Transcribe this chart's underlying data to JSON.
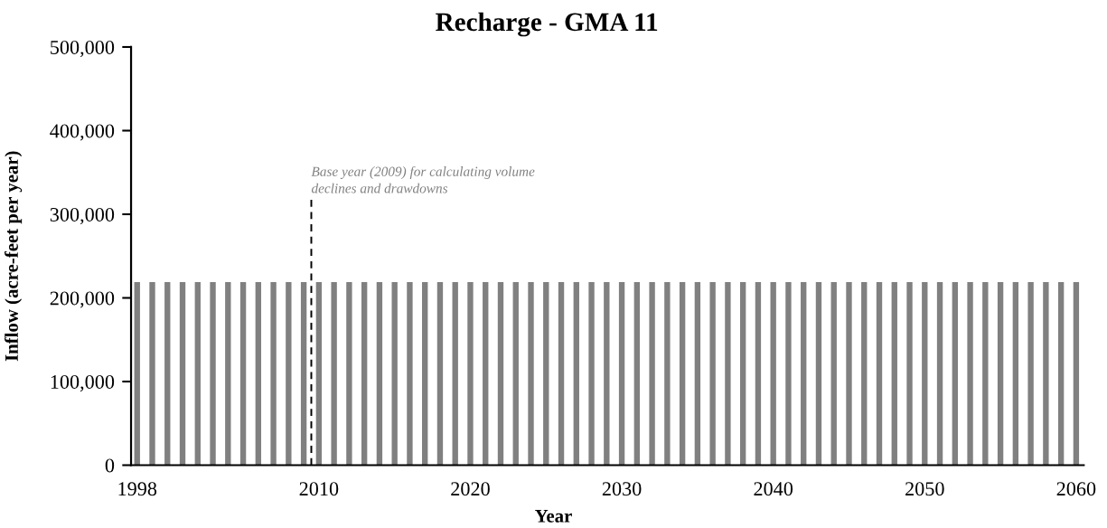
{
  "chart_data": {
    "type": "bar",
    "title": "Recharge - GMA 11",
    "xlabel": "Year",
    "ylabel": "Inflow (acre-feet per year)",
    "x": [
      1998,
      1999,
      2000,
      2001,
      2002,
      2003,
      2004,
      2005,
      2006,
      2007,
      2008,
      2009,
      2010,
      2011,
      2012,
      2013,
      2014,
      2015,
      2016,
      2017,
      2018,
      2019,
      2020,
      2021,
      2022,
      2023,
      2024,
      2025,
      2026,
      2027,
      2028,
      2029,
      2030,
      2031,
      2032,
      2033,
      2034,
      2035,
      2036,
      2037,
      2038,
      2039,
      2040,
      2041,
      2042,
      2043,
      2044,
      2045,
      2046,
      2047,
      2048,
      2049,
      2050,
      2051,
      2052,
      2053,
      2054,
      2055,
      2056,
      2057,
      2058,
      2059,
      2060
    ],
    "series": [
      {
        "color": "#808080",
        "values": [
          219000,
          219000,
          219000,
          219000,
          219000,
          219000,
          219000,
          219000,
          219000,
          219000,
          219000,
          219000,
          219000,
          219000,
          219000,
          219000,
          219000,
          219000,
          219000,
          219000,
          219000,
          219000,
          219000,
          219000,
          219000,
          219000,
          219000,
          219000,
          219000,
          219000,
          219000,
          219000,
          219000,
          219000,
          219000,
          219000,
          219000,
          219000,
          219000,
          219000,
          219000,
          219000,
          219000,
          219000,
          219000,
          219000,
          219000,
          219000,
          219000,
          219000,
          219000,
          219000,
          219000,
          219000,
          219000,
          219000,
          219000,
          219000,
          219000,
          219000,
          219000,
          219000,
          219000
        ]
      },
      {
        "type": "line",
        "x": [
          2009.5,
          2009.5
        ],
        "values": [
          0,
          318000
        ],
        "color": "#000000",
        "line_style": "dashed"
      }
    ],
    "annotations": [
      {
        "text": "Base year (2009) for calculating volume\ndeclines and drawdowns",
        "x": 2009.5,
        "y": 322000
      }
    ],
    "xlim": [
      1997.6,
      2060.5
    ],
    "xticks": [
      1998,
      2010,
      2020,
      2030,
      2040,
      2050,
      2060
    ],
    "ylim": [
      0,
      500000
    ],
    "yticks": [
      {
        "value": 0,
        "label": "0"
      },
      {
        "value": 100000,
        "label": "100,000"
      },
      {
        "value": 200000,
        "label": "200,000"
      },
      {
        "value": 300000,
        "label": "300,000"
      },
      {
        "value": 400000,
        "label": "400,000"
      },
      {
        "value": 500000,
        "label": "500,000"
      }
    ],
    "grid": false
  }
}
